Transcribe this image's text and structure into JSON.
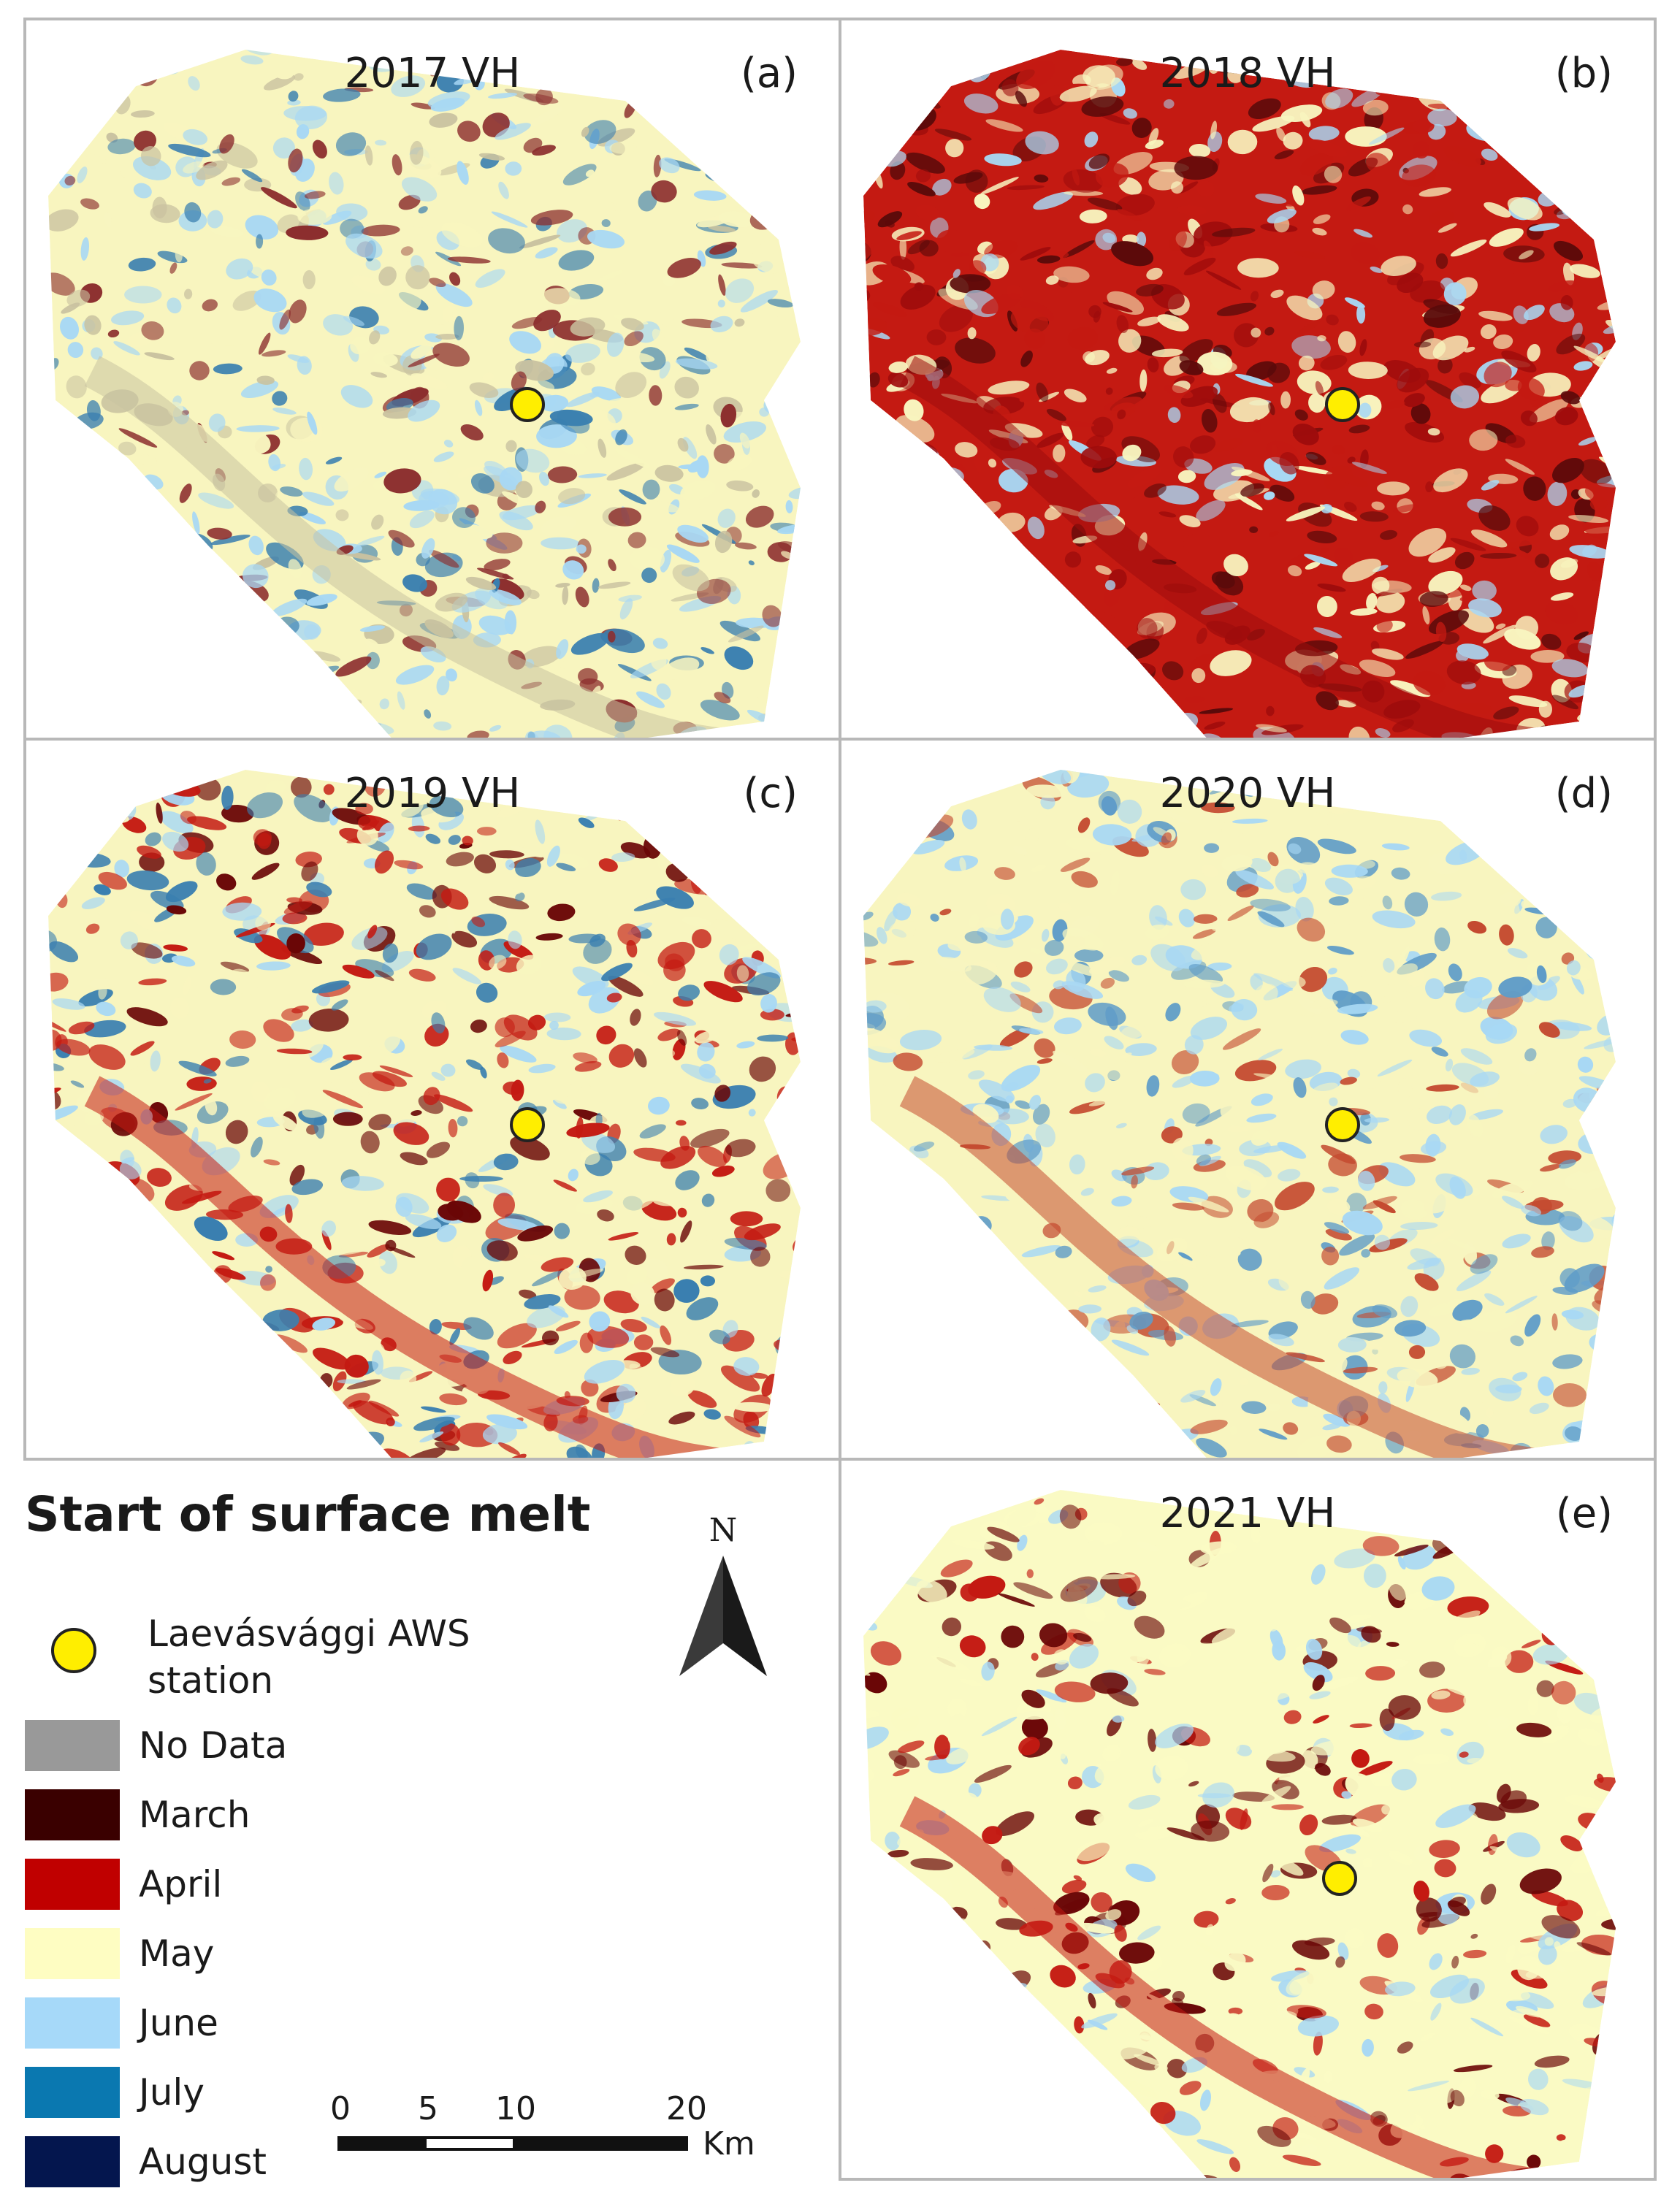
{
  "panels": [
    {
      "title": "2017 VH",
      "letter": "(a)",
      "base": "#f8f5bf",
      "palette": [
        "#f8f5bf",
        "#a8d8f4",
        "#a8d8f4",
        "#c9c2a0",
        "#8c2e2e",
        "#3a7fb0"
      ]
    },
    {
      "title": "2018 VH",
      "letter": "(b)",
      "base": "#c41a12",
      "palette": [
        "#c41a12",
        "#f8f5bf",
        "#a8d8f4",
        "#9e0c0c",
        "#f8f5bf",
        "#5a0a0a"
      ]
    },
    {
      "title": "2019 VH",
      "letter": "(c)",
      "base": "#f8f5bf",
      "palette": [
        "#f8f5bf",
        "#c41a12",
        "#a8d8f4",
        "#c41a12",
        "#6a0606",
        "#3a7fb0"
      ]
    },
    {
      "title": "2020 VH",
      "letter": "(d)",
      "base": "#f8f5bf",
      "palette": [
        "#a8d8f4",
        "#f8f5bf",
        "#a8d8f4",
        "#c44a30",
        "#5f9cc8",
        "#f8f5bf"
      ]
    },
    {
      "title": "2021 VH",
      "letter": "(e)",
      "base": "#fafac4",
      "palette": [
        "#fafac4",
        "#fafac4",
        "#a8d8f4",
        "#c41a12",
        "#fafac4",
        "#6a0606"
      ]
    }
  ],
  "legend": {
    "title": "Start of surface melt",
    "station_label": "Laevásvággi AWS station",
    "classes": [
      {
        "label": "No Data",
        "color": "#999999"
      },
      {
        "label": "March",
        "color": "#3a0000"
      },
      {
        "label": "April",
        "color": "#c00000"
      },
      {
        "label": "May",
        "color": "#fefdc2"
      },
      {
        "label": "June",
        "color": "#a6d9f9"
      },
      {
        "label": "July",
        "color": "#0a78b0"
      },
      {
        "label": "August",
        "color": "#04164e"
      }
    ]
  },
  "north_arrow": {
    "label": "N"
  },
  "scale": {
    "ticks": [
      "0",
      "5",
      "10",
      "20"
    ],
    "unit": "Km"
  }
}
